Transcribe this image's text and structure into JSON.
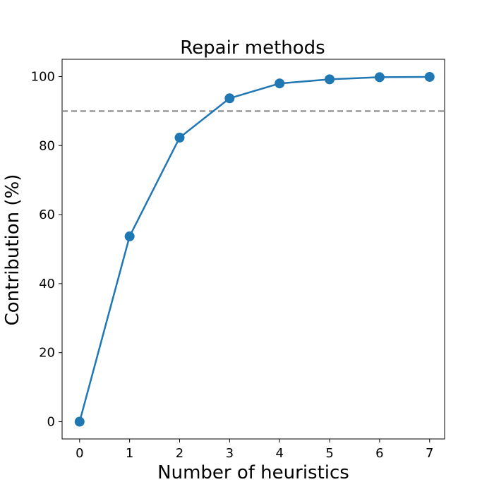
{
  "chart_data": {
    "type": "line",
    "title": "Repair methods",
    "xlabel": "Number of heuristics",
    "ylabel": "Contribution (%)",
    "x": [
      0,
      1,
      2,
      3,
      4,
      5,
      6,
      7
    ],
    "series": [
      {
        "values": [
          0,
          53.7,
          82.3,
          93.7,
          98.0,
          99.2,
          99.8,
          99.9
        ],
        "color": "#1f77b4"
      }
    ],
    "reference_line": {
      "y": 90,
      "style": "dashed",
      "color": "#808080"
    },
    "xlim": [
      -0.35,
      7.3
    ],
    "ylim": [
      -5,
      105
    ],
    "xticks": [
      0,
      1,
      2,
      3,
      4,
      5,
      6,
      7
    ],
    "yticks": [
      0,
      20,
      40,
      60,
      80,
      100
    ],
    "grid": false,
    "legend": "none"
  }
}
